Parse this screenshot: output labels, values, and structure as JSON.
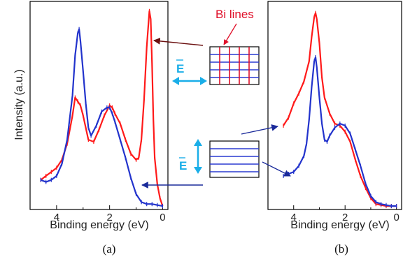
{
  "chart_data": [
    {
      "type": "line",
      "panel_caption": "(a)",
      "xlabel": "Binding energy (eV)",
      "ylabel": "Intensity (a.u.)",
      "xlim": [
        5.0,
        -0.2
      ],
      "xticks": [
        4,
        2,
        0
      ],
      "ylim": [
        0,
        1.0
      ],
      "series": [
        {
          "color": "#ff1a1a",
          "x": [
            4.6,
            4.4,
            4.2,
            4.0,
            3.8,
            3.6,
            3.4,
            3.3,
            3.2,
            3.1,
            3.0,
            2.8,
            2.6,
            2.4,
            2.2,
            2.0,
            1.9,
            1.8,
            1.6,
            1.4,
            1.2,
            1.0,
            0.9,
            0.8,
            0.7,
            0.6,
            0.5,
            0.45,
            0.4,
            0.35,
            0.3,
            0.2,
            0.1,
            0.0
          ],
          "y": [
            0.14,
            0.16,
            0.18,
            0.2,
            0.24,
            0.32,
            0.46,
            0.55,
            0.53,
            0.51,
            0.46,
            0.34,
            0.33,
            0.39,
            0.46,
            0.51,
            0.5,
            0.47,
            0.42,
            0.34,
            0.27,
            0.24,
            0.25,
            0.34,
            0.54,
            0.8,
            0.98,
            0.94,
            0.72,
            0.44,
            0.25,
            0.12,
            0.05,
            0.01
          ]
        },
        {
          "color": "#2233cc",
          "x": [
            4.6,
            4.4,
            4.2,
            4.0,
            3.8,
            3.6,
            3.4,
            3.3,
            3.2,
            3.15,
            3.1,
            3.0,
            2.9,
            2.8,
            2.7,
            2.5,
            2.3,
            2.1,
            2.0,
            1.9,
            1.8,
            1.6,
            1.4,
            1.2,
            1.0,
            0.8,
            0.6,
            0.4,
            0.2,
            0.0
          ],
          "y": [
            0.14,
            0.13,
            0.14,
            0.16,
            0.22,
            0.34,
            0.56,
            0.76,
            0.87,
            0.89,
            0.83,
            0.68,
            0.52,
            0.4,
            0.36,
            0.41,
            0.48,
            0.5,
            0.5,
            0.47,
            0.43,
            0.34,
            0.25,
            0.15,
            0.07,
            0.03,
            0.02,
            0.02,
            0.015,
            0.01
          ]
        }
      ]
    },
    {
      "type": "line",
      "panel_caption": "(b)",
      "xlabel": "Binding energy (eV)",
      "xlim": [
        5.0,
        -0.2
      ],
      "xticks": [
        4,
        2,
        0
      ],
      "ylim": [
        0,
        1.0
      ],
      "series": [
        {
          "color": "#ff1a1a",
          "x": [
            4.4,
            4.2,
            4.0,
            3.8,
            3.6,
            3.4,
            3.3,
            3.2,
            3.15,
            3.1,
            3.0,
            2.9,
            2.8,
            2.6,
            2.4,
            2.2,
            2.0,
            1.8,
            1.6,
            1.4,
            1.2,
            1.0,
            0.8,
            0.6,
            0.4,
            0.2,
            0.0
          ],
          "y": [
            0.41,
            0.45,
            0.52,
            0.57,
            0.63,
            0.73,
            0.85,
            0.95,
            0.97,
            0.94,
            0.82,
            0.65,
            0.55,
            0.47,
            0.42,
            0.41,
            0.38,
            0.33,
            0.24,
            0.16,
            0.1,
            0.05,
            0.02,
            0.015,
            0.01,
            0.01,
            0.01
          ]
        },
        {
          "color": "#2233cc",
          "x": [
            4.4,
            4.2,
            4.0,
            3.8,
            3.6,
            3.5,
            3.4,
            3.3,
            3.2,
            3.15,
            3.1,
            3.0,
            2.9,
            2.8,
            2.7,
            2.6,
            2.4,
            2.2,
            2.0,
            1.8,
            1.6,
            1.4,
            1.2,
            1.0,
            0.8,
            0.6,
            0.4,
            0.2,
            0.0
          ],
          "y": [
            0.16,
            0.17,
            0.18,
            0.21,
            0.26,
            0.32,
            0.44,
            0.6,
            0.73,
            0.75,
            0.7,
            0.55,
            0.42,
            0.34,
            0.33,
            0.36,
            0.4,
            0.42,
            0.41,
            0.37,
            0.29,
            0.21,
            0.12,
            0.06,
            0.03,
            0.02,
            0.015,
            0.01,
            0.01
          ]
        }
      ]
    }
  ],
  "annotations": {
    "bi_lines_label": "Bi lines",
    "e_field_label": "E",
    "e_field_label_2": "E",
    "red_color": "#e0102a",
    "blue_color": "#1a2a9a",
    "cyan_color": "#1aaee8"
  }
}
